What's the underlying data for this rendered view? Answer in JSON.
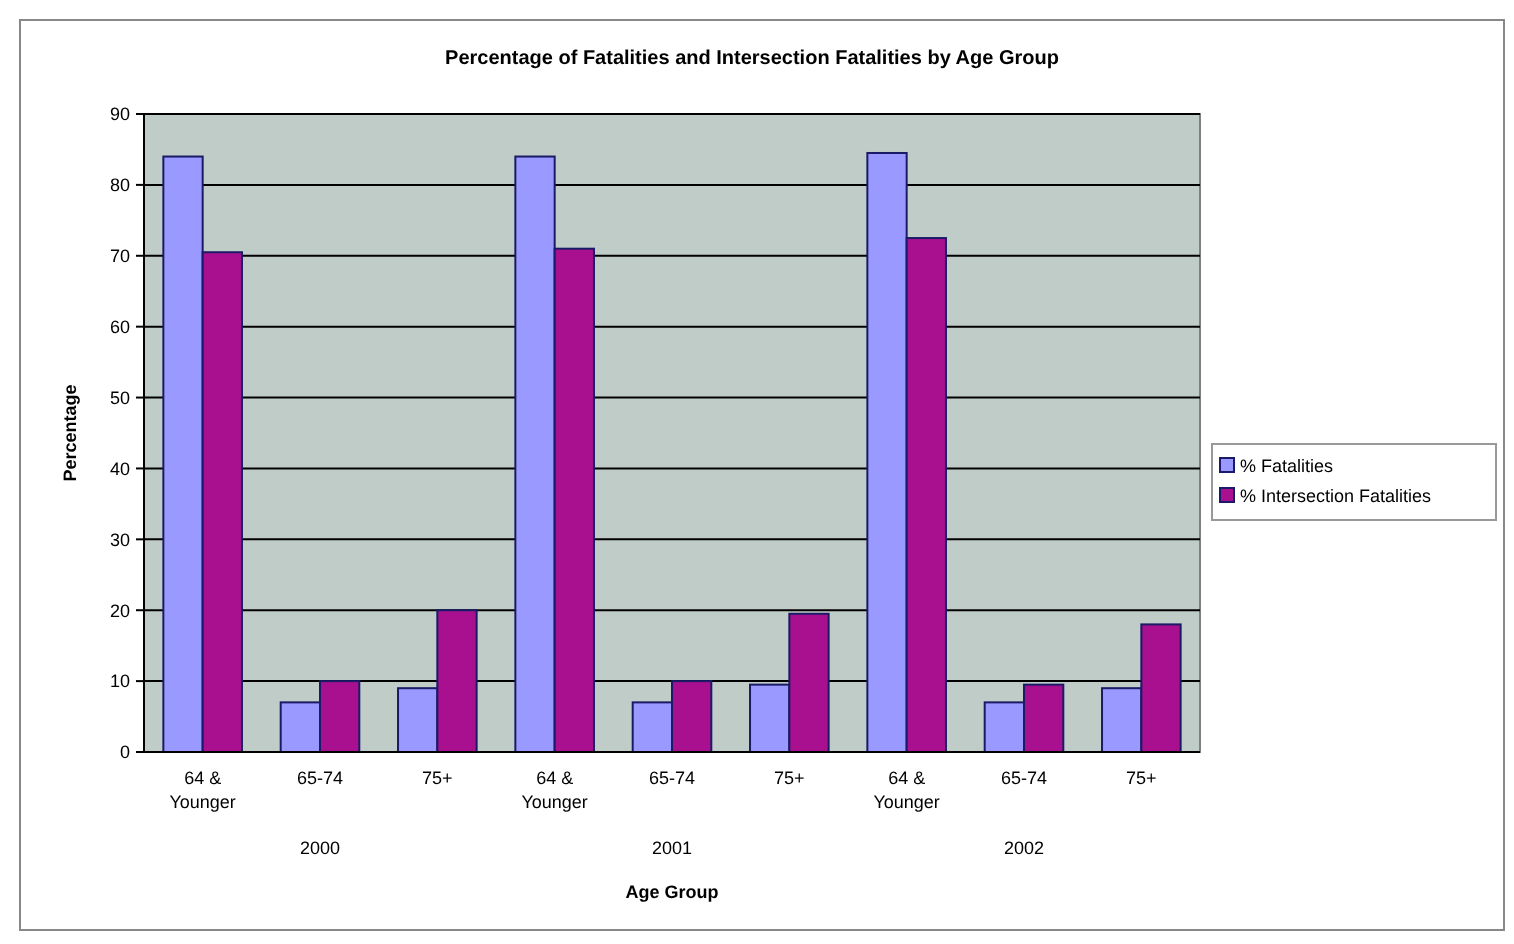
{
  "chart_data": {
    "type": "bar",
    "title": "Percentage of Fatalities and Intersection Fatalities by Age Group",
    "xlabel": "Age Group",
    "ylabel": "Percentage",
    "categories": [
      "64 & Younger",
      "65-74",
      "75+",
      "64 & Younger",
      "65-74",
      "75+",
      "64 & Younger",
      "65-74",
      "75+"
    ],
    "series": [
      {
        "name": "% Fatalities",
        "color": "#9999ff",
        "values": [
          84,
          7,
          9,
          84,
          7,
          9.5,
          84.5,
          7,
          9
        ]
      },
      {
        "name": "% Intersection Fatalities",
        "color": "#a8108f",
        "values": [
          70.5,
          10,
          20,
          71,
          10,
          19.5,
          72.5,
          9.5,
          18
        ]
      }
    ],
    "annotations": [
      "2000",
      "2001",
      "2002"
    ],
    "ylim": [
      0,
      90
    ],
    "yticks": [
      0,
      10,
      20,
      30,
      40,
      50,
      60,
      70,
      80,
      90
    ],
    "grid": "y",
    "legend": "right"
  }
}
